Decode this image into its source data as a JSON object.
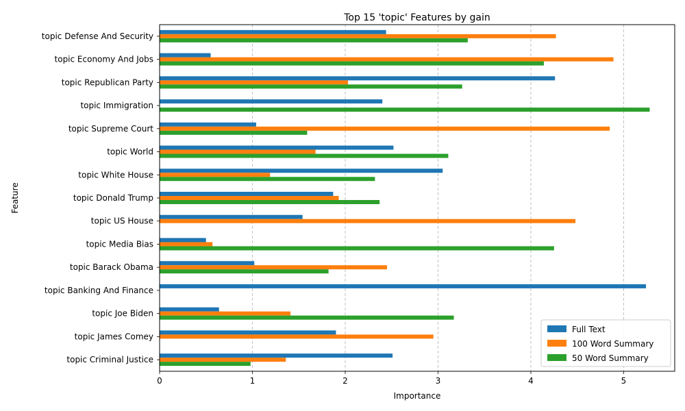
{
  "chart_data": {
    "type": "bar",
    "orientation": "horizontal",
    "title": "Top 15 'topic' Features by gain",
    "xlabel": "Importance",
    "ylabel": "Feature",
    "xlim": [
      0,
      5.55
    ],
    "xticks": [
      0,
      1,
      2,
      3,
      4,
      5
    ],
    "grid": "x dashed",
    "legend_position": "lower-right",
    "categories": [
      "topic Defense And Security",
      "topic Economy And Jobs",
      "topic Republican Party",
      "topic Immigration",
      "topic Supreme Court",
      "topic World",
      "topic White House",
      "topic Donald Trump",
      "topic US House",
      "topic Media Bias",
      "topic Barack Obama",
      "topic Banking And Finance",
      "topic Joe Biden",
      "topic James Comey",
      "topic Criminal Justice"
    ],
    "series": [
      {
        "name": "Full Text",
        "color": "#1f77b4",
        "values": [
          2.44,
          0.55,
          4.26,
          2.4,
          1.04,
          2.52,
          3.05,
          1.87,
          1.54,
          0.5,
          1.02,
          5.24,
          0.64,
          1.9,
          2.51
        ]
      },
      {
        "name": "100 Word Summary",
        "color": "#ff7f0e",
        "values": [
          4.27,
          4.89,
          2.03,
          0.0,
          4.85,
          1.68,
          1.19,
          1.93,
          4.48,
          0.57,
          2.45,
          0.0,
          1.41,
          2.95,
          1.36
        ]
      },
      {
        "name": "50 Word Summary",
        "color": "#2ca02c",
        "values": [
          3.32,
          4.14,
          3.26,
          5.28,
          1.59,
          3.11,
          2.32,
          2.37,
          0.0,
          4.25,
          1.82,
          0.0,
          3.17,
          0.0,
          0.98
        ]
      }
    ]
  }
}
